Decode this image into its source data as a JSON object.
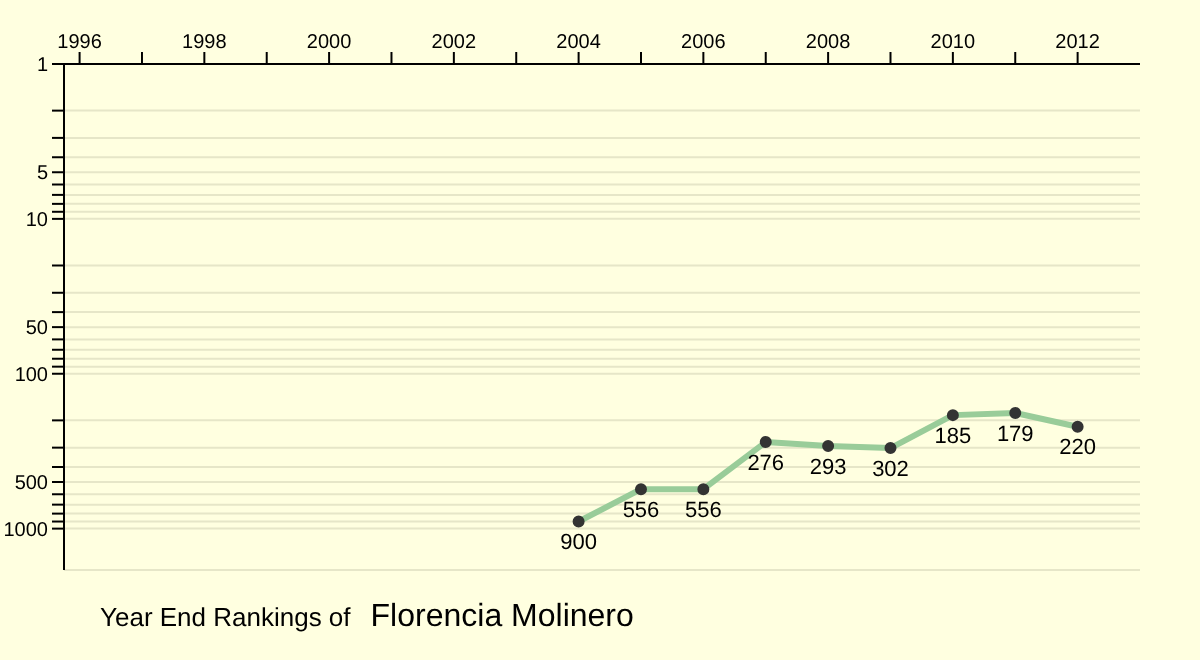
{
  "chart_data": {
    "type": "line",
    "title": "Year End Rankings of",
    "subtitle": "Florencia Molinero",
    "x": [
      2004,
      2005,
      2006,
      2007,
      2008,
      2009,
      2010,
      2011,
      2012
    ],
    "series": [
      {
        "color": "#99cc99",
        "values": [
          900,
          556,
          556,
          276,
          293,
          302,
          185,
          179,
          220
        ]
      }
    ],
    "xlim": [
      1995.75,
      2013
    ],
    "xticks": [
      1996,
      {
        "value": 1997,
        "label": null
      },
      1998,
      {
        "value": 1999,
        "label": null
      },
      2000,
      {
        "value": 2001,
        "label": null
      },
      2002,
      {
        "value": 2003,
        "label": null
      },
      2004,
      {
        "value": 2005,
        "label": null
      },
      2006,
      {
        "value": 2007,
        "label": null
      },
      2008,
      {
        "value": 2009,
        "label": null
      },
      2010,
      {
        "value": 2011,
        "label": null
      },
      2012
    ],
    "ylim": [
      1850,
      1
    ],
    "log": true,
    "yticks": [
      1,
      {
        "value": 2,
        "label": null
      },
      {
        "value": 3,
        "label": null
      },
      {
        "value": 4,
        "label": null
      },
      5,
      {
        "value": 6,
        "label": null
      },
      {
        "value": 7,
        "label": null
      },
      {
        "value": 8,
        "label": null
      },
      {
        "value": 9,
        "label": null
      },
      10,
      {
        "value": 20,
        "label": null
      },
      {
        "value": 30,
        "label": null
      },
      {
        "value": 40,
        "label": null
      },
      50,
      {
        "value": 60,
        "label": null
      },
      {
        "value": 70,
        "label": null
      },
      {
        "value": 80,
        "label": null
      },
      {
        "value": 90,
        "label": null
      },
      100,
      {
        "value": 200,
        "label": null
      },
      {
        "value": 300,
        "label": null
      },
      {
        "value": 400,
        "label": null
      },
      500,
      {
        "value": 600,
        "label": null
      },
      {
        "value": 700,
        "label": null
      },
      {
        "value": 800,
        "label": null
      },
      {
        "value": 900,
        "label": null
      },
      1000
    ],
    "grid": "y",
    "marker": "circle",
    "data_labels": true,
    "legend": false
  }
}
